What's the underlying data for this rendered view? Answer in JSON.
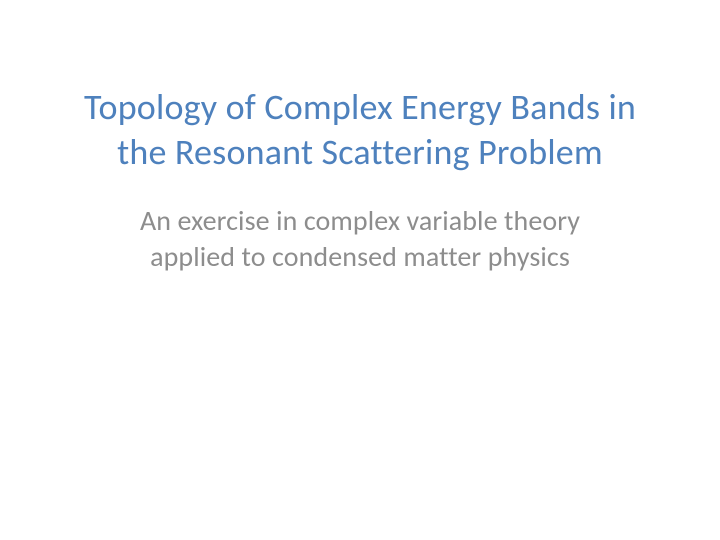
{
  "slide": {
    "title": "Topology of Complex Energy Bands in the Resonant Scattering Problem",
    "subtitle": "An exercise in complex variable theory applied to condensed matter physics",
    "title_color": "#4e81bd",
    "subtitle_color": "#8d8d8d",
    "background_color": "#ffffff",
    "title_fontsize": 36,
    "subtitle_fontsize": 28
  }
}
